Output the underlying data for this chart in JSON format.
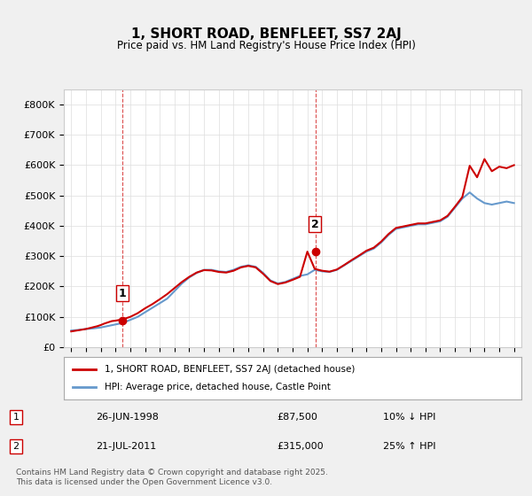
{
  "title": "1, SHORT ROAD, BENFLEET, SS7 2AJ",
  "subtitle": "Price paid vs. HM Land Registry's House Price Index (HPI)",
  "legend_line1": "1, SHORT ROAD, BENFLEET, SS7 2AJ (detached house)",
  "legend_line2": "HPI: Average price, detached house, Castle Point",
  "transaction1_label": "1",
  "transaction1_date": "26-JUN-1998",
  "transaction1_price": "£87,500",
  "transaction1_hpi": "10% ↓ HPI",
  "transaction2_label": "2",
  "transaction2_date": "21-JUL-2011",
  "transaction2_price": "£315,000",
  "transaction2_hpi": "25% ↑ HPI",
  "footer": "Contains HM Land Registry data © Crown copyright and database right 2025.\nThis data is licensed under the Open Government Licence v3.0.",
  "line_color_red": "#cc0000",
  "line_color_blue": "#6699cc",
  "background_color": "#f0f0f0",
  "plot_bg_color": "#ffffff",
  "ylim": [
    0,
    850000
  ],
  "yticks": [
    0,
    100000,
    200000,
    300000,
    400000,
    500000,
    600000,
    700000,
    800000
  ],
  "ytick_labels": [
    "£0",
    "£100K",
    "£200K",
    "£300K",
    "£400K",
    "£500K",
    "£600K",
    "£700K",
    "£800K"
  ],
  "hpi_data": {
    "years": [
      1995,
      1995.5,
      1996,
      1996.5,
      1997,
      1997.5,
      1998,
      1998.5,
      1999,
      1999.5,
      2000,
      2000.5,
      2001,
      2001.5,
      2002,
      2002.5,
      2003,
      2003.5,
      2004,
      2004.5,
      2005,
      2005.5,
      2006,
      2006.5,
      2007,
      2007.5,
      2008,
      2008.5,
      2009,
      2009.5,
      2010,
      2010.5,
      2011,
      2011.5,
      2012,
      2012.5,
      2013,
      2013.5,
      2014,
      2014.5,
      2015,
      2015.5,
      2016,
      2016.5,
      2017,
      2017.5,
      2018,
      2018.5,
      2019,
      2019.5,
      2020,
      2020.5,
      2021,
      2021.5,
      2022,
      2022.5,
      2023,
      2023.5,
      2024,
      2024.5,
      2025
    ],
    "values": [
      55000,
      57000,
      60000,
      62000,
      65000,
      70000,
      75000,
      80000,
      90000,
      100000,
      115000,
      130000,
      145000,
      160000,
      185000,
      210000,
      230000,
      245000,
      255000,
      255000,
      250000,
      248000,
      255000,
      265000,
      270000,
      265000,
      245000,
      220000,
      210000,
      215000,
      225000,
      235000,
      240000,
      255000,
      250000,
      248000,
      255000,
      270000,
      285000,
      300000,
      315000,
      325000,
      345000,
      370000,
      390000,
      395000,
      400000,
      405000,
      405000,
      410000,
      415000,
      430000,
      460000,
      490000,
      510000,
      490000,
      475000,
      470000,
      475000,
      480000,
      475000
    ]
  },
  "price_data": {
    "years": [
      1995,
      1995.25,
      1995.5,
      1995.75,
      1996,
      1996.25,
      1996.5,
      1996.75,
      1997,
      1997.25,
      1997.5,
      1997.75,
      1998,
      1998.5,
      1999,
      1999.5,
      2000,
      2000.5,
      2001,
      2001.5,
      2002,
      2002.5,
      2003,
      2003.5,
      2004,
      2004.5,
      2005,
      2005.5,
      2006,
      2006.5,
      2007,
      2007.5,
      2008,
      2008.5,
      2009,
      2009.5,
      2010,
      2010.5,
      2011,
      2011.5,
      2012,
      2012.5,
      2013,
      2013.5,
      2014,
      2014.5,
      2015,
      2015.5,
      2016,
      2016.5,
      2017,
      2017.5,
      2018,
      2018.5,
      2019,
      2019.5,
      2020,
      2020.5,
      2021,
      2021.5,
      2022,
      2022.5,
      2023,
      2023.5,
      2024,
      2024.5,
      2025
    ],
    "values": [
      52000,
      54000,
      56000,
      58000,
      60000,
      63000,
      66000,
      69000,
      73000,
      78000,
      82000,
      86000,
      87500,
      92000,
      100000,
      112000,
      128000,
      142000,
      158000,
      175000,
      195000,
      215000,
      232000,
      246000,
      254000,
      253000,
      248000,
      246000,
      252000,
      263000,
      268000,
      263000,
      242000,
      218000,
      208000,
      213000,
      222000,
      232000,
      315000,
      258000,
      252000,
      249000,
      256000,
      271000,
      287000,
      302000,
      318000,
      328000,
      348000,
      373000,
      393000,
      398000,
      403000,
      408000,
      408000,
      413000,
      418000,
      433000,
      463000,
      495000,
      598000,
      560000,
      620000,
      580000,
      595000,
      590000,
      600000
    ]
  },
  "transaction_years": [
    1998.49,
    2011.55
  ],
  "transaction_prices": [
    87500,
    315000
  ],
  "vline_years": [
    1998.49,
    2011.55
  ],
  "marker_labels": [
    "1",
    "2"
  ]
}
